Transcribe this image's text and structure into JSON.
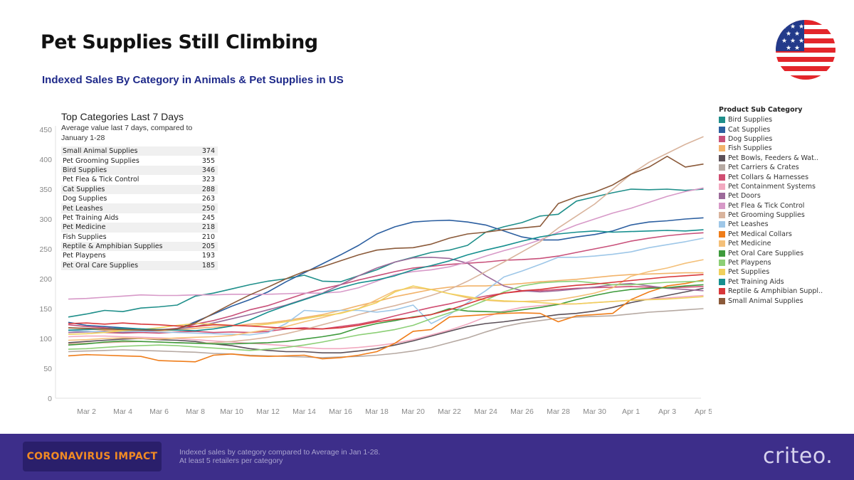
{
  "header": {
    "title": "Pet Supplies Still Climbing",
    "subtitle": "Indexed Sales By Category in Animals & Pet Supplies in US"
  },
  "top_categories": {
    "title": "Top Categories Last 7 Days",
    "subtitle_line1": "Average value last 7 days, compared to",
    "subtitle_line2": "January 1-28",
    "rows": [
      {
        "name": "Small Animal Supplies",
        "value": "374"
      },
      {
        "name": "Pet Grooming Supplies",
        "value": "355"
      },
      {
        "name": "Bird Supplies",
        "value": "346"
      },
      {
        "name": "Pet Flea & Tick Control",
        "value": "323"
      },
      {
        "name": "Cat Supplies",
        "value": "288"
      },
      {
        "name": "Dog Supplies",
        "value": "263"
      },
      {
        "name": "Pet Leashes",
        "value": "250"
      },
      {
        "name": "Pet Training Aids",
        "value": "245"
      },
      {
        "name": "Pet Medicine",
        "value": "218"
      },
      {
        "name": "Fish Supplies",
        "value": "210"
      },
      {
        "name": "Reptile & Amphibian Supplies",
        "value": "205"
      },
      {
        "name": "Pet Playpens",
        "value": "193"
      },
      {
        "name": "Pet Oral Care Supplies",
        "value": "185"
      }
    ]
  },
  "footer": {
    "badge": "CORONAVIRUS IMPACT",
    "note_line1": "Indexed sales by category compared to Average in Jan 1-28.",
    "note_line2": "At least 5 retailers per category",
    "brand": "criteo."
  },
  "colors": {
    "title": "#111111",
    "subtitle": "#1f2a8a",
    "footer_bg": "#3d2e8a",
    "badge_bg": "#2a1f6b",
    "badge_text": "#f08a24"
  },
  "chart_data": {
    "type": "line",
    "title": "",
    "xlabel": "",
    "ylabel": "",
    "ylim": [
      0,
      450
    ],
    "yticks": [
      0,
      50,
      100,
      150,
      200,
      250,
      300,
      350,
      400,
      450
    ],
    "x": [
      "Mar 1",
      "Mar 2",
      "Mar 3",
      "Mar 4",
      "Mar 5",
      "Mar 6",
      "Mar 7",
      "Mar 8",
      "Mar 9",
      "Mar 10",
      "Mar 11",
      "Mar 12",
      "Mar 13",
      "Mar 14",
      "Mar 15",
      "Mar 16",
      "Mar 17",
      "Mar 18",
      "Mar 19",
      "Mar 20",
      "Mar 21",
      "Mar 22",
      "Mar 23",
      "Mar 24",
      "Mar 25",
      "Mar 26",
      "Mar 27",
      "Mar 28",
      "Mar 29",
      "Mar 30",
      "Mar 31",
      "Apr 1",
      "Apr 2",
      "Apr 3",
      "Apr 4",
      "Apr 5"
    ],
    "x_tick_labels": [
      "Mar 2",
      "Mar 4",
      "Mar 6",
      "Mar 8",
      "Mar 10",
      "Mar 12",
      "Mar 14",
      "Mar 16",
      "Mar 18",
      "Mar 20",
      "Mar 22",
      "Mar 24",
      "Mar 26",
      "Mar 28",
      "Mar 30",
      "Apr 1",
      "Apr 3",
      "Apr 5"
    ],
    "legend_title": "Product Sub Category",
    "legend_position": "right",
    "series": [
      {
        "name": "Bird Supplies",
        "color": "#1f8f8a",
        "values": [
          136,
          141,
          147,
          145,
          151,
          153,
          156,
          171,
          176,
          183,
          190,
          196,
          200,
          206,
          196,
          195,
          205,
          215,
          228,
          236,
          244,
          248,
          256,
          278,
          287,
          294,
          305,
          308,
          330,
          337,
          344,
          350,
          349,
          350,
          348,
          350
        ]
      },
      {
        "name": "Cat Supplies",
        "color": "#2c5fa0",
        "values": [
          127,
          122,
          120,
          118,
          116,
          115,
          116,
          128,
          141,
          154,
          165,
          178,
          195,
          210,
          225,
          240,
          256,
          275,
          287,
          295,
          297,
          298,
          295,
          290,
          280,
          270,
          265,
          265,
          270,
          274,
          280,
          290,
          295,
          297,
          300,
          302
        ]
      },
      {
        "name": "Dog Supplies",
        "color": "#c8507a",
        "values": [
          123,
          120,
          118,
          116,
          114,
          114,
          117,
          124,
          130,
          138,
          148,
          155,
          165,
          175,
          183,
          190,
          198,
          205,
          212,
          218,
          221,
          224,
          226,
          228,
          231,
          232,
          234,
          238,
          244,
          250,
          256,
          263,
          268,
          272,
          275,
          277
        ]
      },
      {
        "name": "Fish Supplies",
        "color": "#f2b36a",
        "values": [
          118,
          116,
          114,
          113,
          113,
          113,
          114,
          117,
          119,
          121,
          124,
          126,
          130,
          135,
          140,
          147,
          155,
          162,
          170,
          176,
          182,
          186,
          188,
          188,
          190,
          192,
          195,
          197,
          199,
          202,
          205,
          207,
          208,
          209,
          210,
          210
        ]
      },
      {
        "name": "Pet Bowls, Feeders & Wat..",
        "color": "#5b5058",
        "values": [
          93,
          95,
          97,
          99,
          100,
          98,
          97,
          95,
          91,
          88,
          83,
          80,
          78,
          78,
          76,
          76,
          79,
          83,
          89,
          96,
          104,
          112,
          120,
          125,
          128,
          132,
          136,
          140,
          142,
          146,
          152,
          160,
          166,
          172,
          178,
          184
        ]
      },
      {
        "name": "Pet Carriers & Crates",
        "color": "#b6a9a2",
        "values": [
          78,
          79,
          80,
          81,
          80,
          79,
          78,
          77,
          75,
          74,
          72,
          71,
          70,
          69,
          68,
          69,
          70,
          72,
          75,
          79,
          85,
          93,
          101,
          111,
          120,
          126,
          130,
          134,
          136,
          137,
          138,
          141,
          144,
          146,
          148,
          150
        ]
      },
      {
        "name": "Pet Collars & Harnesses",
        "color": "#d04e72",
        "values": [
          113,
          112,
          110,
          109,
          110,
          109,
          111,
          112,
          110,
          111,
          110,
          112,
          116,
          118,
          116,
          120,
          124,
          130,
          138,
          145,
          152,
          158,
          165,
          171,
          176,
          179,
          180,
          182,
          184,
          185,
          186,
          187,
          186,
          185,
          186,
          187
        ]
      },
      {
        "name": "Pet Containment Systems",
        "color": "#f2a9c0",
        "values": [
          103,
          104,
          104,
          103,
          102,
          101,
          100,
          98,
          96,
          94,
          92,
          90,
          88,
          85,
          83,
          83,
          85,
          88,
          92,
          98,
          106,
          114,
          124,
          136,
          146,
          152,
          155,
          157,
          158,
          160,
          162,
          164,
          166,
          168,
          170,
          172
        ]
      },
      {
        "name": "Pet Doors",
        "color": "#9c6a9a",
        "values": [
          110,
          111,
          112,
          110,
          112,
          114,
          116,
          120,
          126,
          133,
          140,
          148,
          156,
          166,
          176,
          190,
          205,
          218,
          228,
          235,
          236,
          234,
          226,
          205,
          188,
          180,
          178,
          180,
          183,
          186,
          190,
          192,
          188,
          184,
          182,
          180
        ]
      },
      {
        "name": "Pet Flea & Tick Control",
        "color": "#d799c8",
        "values": [
          166,
          167,
          169,
          171,
          173,
          172,
          172,
          173,
          173,
          174,
          174,
          174,
          175,
          176,
          176,
          178,
          185,
          196,
          207,
          212,
          215,
          220,
          228,
          238,
          247,
          255,
          265,
          278,
          290,
          300,
          310,
          318,
          328,
          338,
          346,
          352
        ]
      },
      {
        "name": "Pet Grooming Supplies",
        "color": "#d9b49d",
        "values": [
          91,
          92,
          93,
          94,
          95,
          94,
          93,
          92,
          93,
          95,
          98,
          102,
          108,
          115,
          123,
          131,
          140,
          148,
          155,
          163,
          172,
          182,
          196,
          212,
          228,
          245,
          262,
          285,
          305,
          325,
          350,
          375,
          395,
          410,
          425,
          438
        ]
      },
      {
        "name": "Pet Leashes",
        "color": "#9ec7e8",
        "values": [
          113,
          112,
          111,
          112,
          112,
          111,
          110,
          109,
          108,
          107,
          106,
          110,
          125,
          147,
          145,
          147,
          147,
          144,
          148,
          156,
          125,
          140,
          160,
          180,
          203,
          213,
          224,
          236,
          236,
          238,
          241,
          245,
          252,
          257,
          262,
          268
        ]
      },
      {
        "name": "Pet Medical Collars",
        "color": "#ef7d1a",
        "values": [
          71,
          73,
          72,
          71,
          70,
          63,
          62,
          61,
          72,
          74,
          71,
          70,
          71,
          72,
          66,
          68,
          72,
          78,
          92,
          112,
          115,
          136,
          138,
          140,
          142,
          143,
          142,
          128,
          138,
          140,
          142,
          165,
          178,
          188,
          192,
          198
        ]
      },
      {
        "name": "Pet Medicine",
        "color": "#f4c079",
        "values": [
          97,
          98,
          100,
          101,
          100,
          99,
          101,
          102,
          103,
          105,
          110,
          115,
          120,
          128,
          135,
          143,
          150,
          165,
          180,
          185,
          182,
          175,
          168,
          164,
          162,
          162,
          163,
          165,
          170,
          176,
          185,
          204,
          212,
          218,
          226,
          232
        ]
      },
      {
        "name": "Pet Oral Care Supplies",
        "color": "#3e9a3c",
        "values": [
          89,
          91,
          94,
          96,
          95,
          94,
          93,
          92,
          91,
          91,
          92,
          93,
          95,
          99,
          103,
          108,
          118,
          125,
          130,
          136,
          140,
          150,
          146,
          145,
          144,
          148,
          152,
          157,
          165,
          172,
          178,
          182,
          184,
          185,
          188,
          190
        ]
      },
      {
        "name": "Pet Playpens",
        "color": "#8ccf76",
        "values": [
          82,
          83,
          85,
          87,
          88,
          89,
          88,
          86,
          84,
          82,
          80,
          82,
          85,
          89,
          94,
          100,
          106,
          110,
          115,
          122,
          133,
          143,
          152,
          164,
          178,
          188,
          193,
          195,
          196,
          193,
          190,
          190,
          192,
          194,
          195,
          196
        ]
      },
      {
        "name": "Pet Supplies",
        "color": "#f0d05c",
        "values": [
          107,
          108,
          110,
          113,
          115,
          118,
          122,
          125,
          124,
          122,
          121,
          124,
          128,
          133,
          138,
          142,
          150,
          160,
          178,
          188,
          182,
          175,
          170,
          165,
          163,
          162,
          160,
          158,
          158,
          160,
          162,
          164,
          165,
          166,
          168,
          170
        ]
      },
      {
        "name": "Pet Training Aids",
        "color": "#168f8f",
        "values": [
          114,
          115,
          116,
          117,
          116,
          115,
          114,
          113,
          116,
          121,
          131,
          144,
          155,
          165,
          175,
          185,
          193,
          198,
          205,
          215,
          222,
          230,
          240,
          248,
          255,
          263,
          270,
          275,
          278,
          280,
          278,
          279,
          280,
          281,
          280,
          282
        ]
      },
      {
        "name": "Reptile & Amphibian Suppl..",
        "color": "#d8373a",
        "values": [
          125,
          126,
          124,
          126,
          124,
          123,
          121,
          120,
          123,
          122,
          121,
          119,
          117,
          116,
          116,
          118,
          122,
          128,
          132,
          135,
          140,
          148,
          158,
          168,
          176,
          180,
          182,
          186,
          189,
          191,
          194,
          197,
          200,
          203,
          205,
          207
        ]
      },
      {
        "name": "Small Animal Supplies",
        "color": "#8b5a3a",
        "values": [
          118,
          117,
          116,
          115,
          114,
          114,
          116,
          126,
          142,
          158,
          173,
          186,
          200,
          212,
          220,
          230,
          240,
          248,
          251,
          252,
          258,
          268,
          275,
          278,
          282,
          285,
          288,
          326,
          337,
          345,
          357,
          375,
          387,
          405,
          387,
          392
        ]
      }
    ]
  }
}
